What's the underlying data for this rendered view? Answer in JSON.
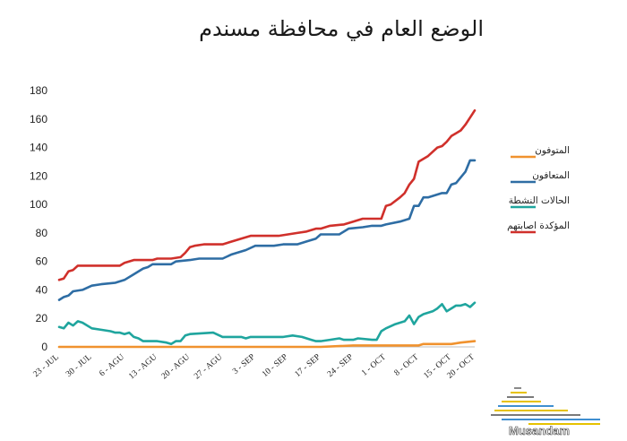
{
  "title": "الوضع العام في محافظة مسندم",
  "logo_text": "Musandam",
  "chart_data": {
    "type": "line",
    "title": "الوضع العام في محافظة مسندم",
    "xlabel": "",
    "ylabel": "",
    "ylim": [
      0,
      180
    ],
    "yticks": [
      0,
      20,
      40,
      60,
      80,
      100,
      120,
      140,
      160,
      180
    ],
    "grid": false,
    "legend_position": "right",
    "x_start": "2020-07-23",
    "x_end": "2020-10-20",
    "xtick_labels": [
      "23 - JUL",
      "30 - JUL",
      "6 - AGU",
      "13 - AGU",
      "20 - AGU",
      "27 - AGU",
      "3 - SEP",
      "10 - SEP",
      "17 - SEP",
      "24 - SEP",
      "1 - OCT",
      "8 - OCT",
      "15 - OCT",
      "20 - OCT"
    ],
    "xtick_dates": [
      "2020-07-23",
      "2020-07-30",
      "2020-08-06",
      "2020-08-13",
      "2020-08-20",
      "2020-08-27",
      "2020-09-03",
      "2020-09-10",
      "2020-09-17",
      "2020-09-24",
      "2020-10-01",
      "2020-10-08",
      "2020-10-15",
      "2020-10-20"
    ],
    "series": [
      {
        "name": "المتوفون",
        "color": "#F0922E",
        "points": [
          [
            "2020-07-23",
            0
          ],
          [
            "2020-08-20",
            0
          ],
          [
            "2020-09-17",
            0
          ],
          [
            "2020-09-24",
            1
          ],
          [
            "2020-10-01",
            1
          ],
          [
            "2020-10-08",
            1
          ],
          [
            "2020-10-09",
            2
          ],
          [
            "2020-10-15",
            2
          ],
          [
            "2020-10-17",
            3
          ],
          [
            "2020-10-20",
            4
          ]
        ]
      },
      {
        "name": "المتعافون",
        "color": "#2E6DA4",
        "points": [
          [
            "2020-07-23",
            33
          ],
          [
            "2020-07-24",
            35
          ],
          [
            "2020-07-25",
            36
          ],
          [
            "2020-07-26",
            39
          ],
          [
            "2020-07-28",
            40
          ],
          [
            "2020-07-30",
            43
          ],
          [
            "2020-08-01",
            44
          ],
          [
            "2020-08-04",
            45
          ],
          [
            "2020-08-06",
            47
          ],
          [
            "2020-08-08",
            51
          ],
          [
            "2020-08-10",
            55
          ],
          [
            "2020-08-11",
            56
          ],
          [
            "2020-08-12",
            58
          ],
          [
            "2020-08-16",
            58
          ],
          [
            "2020-08-17",
            60
          ],
          [
            "2020-08-20",
            61
          ],
          [
            "2020-08-22",
            62
          ],
          [
            "2020-08-27",
            62
          ],
          [
            "2020-08-29",
            65
          ],
          [
            "2020-09-01",
            68
          ],
          [
            "2020-09-03",
            71
          ],
          [
            "2020-09-07",
            71
          ],
          [
            "2020-09-09",
            72
          ],
          [
            "2020-09-12",
            72
          ],
          [
            "2020-09-14",
            74
          ],
          [
            "2020-09-16",
            76
          ],
          [
            "2020-09-17",
            79
          ],
          [
            "2020-09-21",
            79
          ],
          [
            "2020-09-23",
            83
          ],
          [
            "2020-09-26",
            84
          ],
          [
            "2020-09-28",
            85
          ],
          [
            "2020-09-30",
            85
          ],
          [
            "2020-10-01",
            86
          ],
          [
            "2020-10-04",
            88
          ],
          [
            "2020-10-06",
            90
          ],
          [
            "2020-10-07",
            99
          ],
          [
            "2020-10-08",
            99
          ],
          [
            "2020-10-09",
            105
          ],
          [
            "2020-10-10",
            105
          ],
          [
            "2020-10-12",
            107
          ],
          [
            "2020-10-13",
            108
          ],
          [
            "2020-10-14",
            108
          ],
          [
            "2020-10-15",
            114
          ],
          [
            "2020-10-16",
            115
          ],
          [
            "2020-10-18",
            123
          ],
          [
            "2020-10-19",
            131
          ],
          [
            "2020-10-20",
            131
          ]
        ]
      },
      {
        "name": "الحالات النشطة",
        "color": "#1FA59E",
        "points": [
          [
            "2020-07-23",
            14
          ],
          [
            "2020-07-24",
            13
          ],
          [
            "2020-07-25",
            17
          ],
          [
            "2020-07-26",
            15
          ],
          [
            "2020-07-27",
            18
          ],
          [
            "2020-07-28",
            17
          ],
          [
            "2020-07-30",
            13
          ],
          [
            "2020-08-01",
            12
          ],
          [
            "2020-08-03",
            11
          ],
          [
            "2020-08-04",
            10
          ],
          [
            "2020-08-05",
            10
          ],
          [
            "2020-08-06",
            9
          ],
          [
            "2020-08-07",
            10
          ],
          [
            "2020-08-08",
            7
          ],
          [
            "2020-08-09",
            6
          ],
          [
            "2020-08-10",
            4
          ],
          [
            "2020-08-13",
            4
          ],
          [
            "2020-08-15",
            3
          ],
          [
            "2020-08-16",
            2
          ],
          [
            "2020-08-17",
            4
          ],
          [
            "2020-08-18",
            4
          ],
          [
            "2020-08-19",
            8
          ],
          [
            "2020-08-20",
            9
          ],
          [
            "2020-08-25",
            10
          ],
          [
            "2020-08-27",
            7
          ],
          [
            "2020-08-31",
            7
          ],
          [
            "2020-09-01",
            6
          ],
          [
            "2020-09-02",
            7
          ],
          [
            "2020-09-07",
            7
          ],
          [
            "2020-09-09",
            7
          ],
          [
            "2020-09-11",
            8
          ],
          [
            "2020-09-13",
            7
          ],
          [
            "2020-09-15",
            5
          ],
          [
            "2020-09-16",
            4
          ],
          [
            "2020-09-17",
            4
          ],
          [
            "2020-09-19",
            5
          ],
          [
            "2020-09-21",
            6
          ],
          [
            "2020-09-22",
            5
          ],
          [
            "2020-09-24",
            5
          ],
          [
            "2020-09-25",
            6
          ],
          [
            "2020-09-28",
            5
          ],
          [
            "2020-09-29",
            5
          ],
          [
            "2020-09-30",
            11
          ],
          [
            "2020-10-01",
            13
          ],
          [
            "2020-10-03",
            16
          ],
          [
            "2020-10-05",
            18
          ],
          [
            "2020-10-06",
            22
          ],
          [
            "2020-10-07",
            16
          ],
          [
            "2020-10-08",
            21
          ],
          [
            "2020-10-09",
            23
          ],
          [
            "2020-10-11",
            25
          ],
          [
            "2020-10-12",
            27
          ],
          [
            "2020-10-13",
            30
          ],
          [
            "2020-10-14",
            25
          ],
          [
            "2020-10-15",
            27
          ],
          [
            "2020-10-16",
            29
          ],
          [
            "2020-10-17",
            29
          ],
          [
            "2020-10-18",
            30
          ],
          [
            "2020-10-19",
            28
          ],
          [
            "2020-10-20",
            31
          ]
        ]
      },
      {
        "name": "المؤكدة اصابتهم",
        "color": "#D0302B",
        "points": [
          [
            "2020-07-23",
            47
          ],
          [
            "2020-07-24",
            48
          ],
          [
            "2020-07-25",
            53
          ],
          [
            "2020-07-26",
            54
          ],
          [
            "2020-07-27",
            57
          ],
          [
            "2020-07-29",
            57
          ],
          [
            "2020-08-02",
            57
          ],
          [
            "2020-08-05",
            57
          ],
          [
            "2020-08-06",
            59
          ],
          [
            "2020-08-08",
            61
          ],
          [
            "2020-08-12",
            61
          ],
          [
            "2020-08-13",
            62
          ],
          [
            "2020-08-16",
            62
          ],
          [
            "2020-08-18",
            63
          ],
          [
            "2020-08-19",
            66
          ],
          [
            "2020-08-20",
            70
          ],
          [
            "2020-08-21",
            71
          ],
          [
            "2020-08-23",
            72
          ],
          [
            "2020-08-27",
            72
          ],
          [
            "2020-08-31",
            76
          ],
          [
            "2020-09-02",
            78
          ],
          [
            "2020-09-08",
            78
          ],
          [
            "2020-09-10",
            79
          ],
          [
            "2020-09-12",
            80
          ],
          [
            "2020-09-14",
            81
          ],
          [
            "2020-09-16",
            83
          ],
          [
            "2020-09-17",
            83
          ],
          [
            "2020-09-19",
            85
          ],
          [
            "2020-09-22",
            86
          ],
          [
            "2020-09-24",
            88
          ],
          [
            "2020-09-26",
            90
          ],
          [
            "2020-09-30",
            90
          ],
          [
            "2020-10-01",
            99
          ],
          [
            "2020-10-02",
            100
          ],
          [
            "2020-10-04",
            105
          ],
          [
            "2020-10-05",
            108
          ],
          [
            "2020-10-06",
            114
          ],
          [
            "2020-10-07",
            118
          ],
          [
            "2020-10-08",
            130
          ],
          [
            "2020-10-10",
            134
          ],
          [
            "2020-10-11",
            137
          ],
          [
            "2020-10-12",
            140
          ],
          [
            "2020-10-13",
            141
          ],
          [
            "2020-10-14",
            144
          ],
          [
            "2020-10-15",
            148
          ],
          [
            "2020-10-17",
            152
          ],
          [
            "2020-10-18",
            156
          ],
          [
            "2020-10-19",
            161
          ],
          [
            "2020-10-20",
            166
          ]
        ]
      }
    ]
  }
}
